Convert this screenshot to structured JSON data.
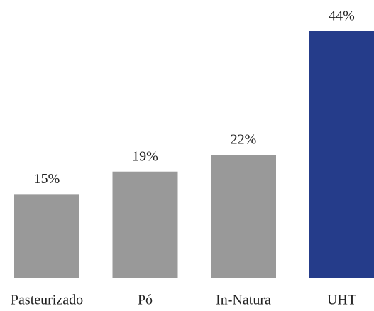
{
  "chart_data": {
    "type": "bar",
    "categories": [
      "Pasteurizado",
      "Pó",
      "In-Natura",
      "UHT"
    ],
    "values": [
      15,
      19,
      22,
      44
    ],
    "value_labels": [
      "15%",
      "19%",
      "22%",
      "44%"
    ],
    "colors": [
      "#999999",
      "#999999",
      "#999999",
      "#253c8a"
    ]
  }
}
